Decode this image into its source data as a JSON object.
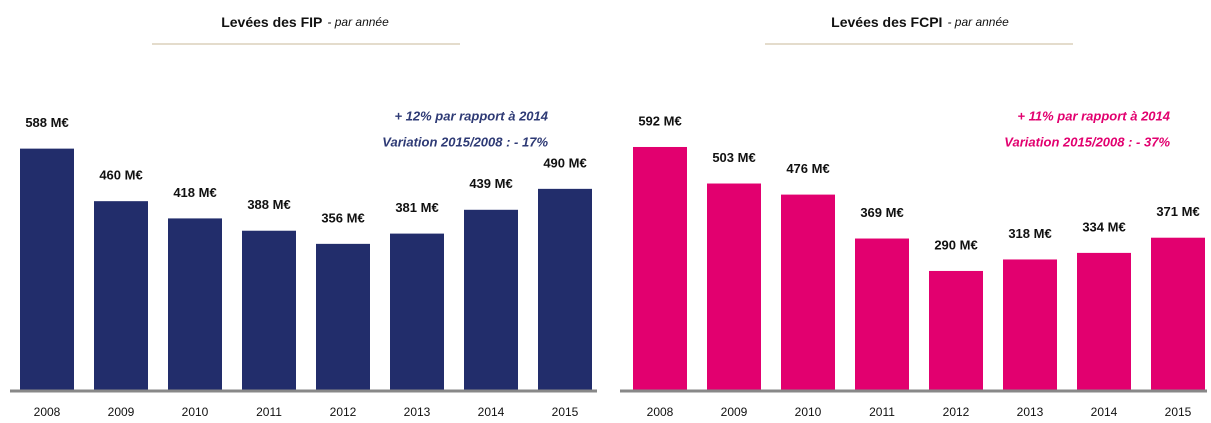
{
  "chart_data": [
    {
      "type": "bar",
      "title": "Levées des FIP",
      "subtitle": "- par année",
      "annotations": [
        "+ 12% par rapport à 2014",
        "Variation 2015/2008 :  - 17%"
      ],
      "categories": [
        "2008",
        "2009",
        "2010",
        "2011",
        "2012",
        "2013",
        "2014",
        "2015"
      ],
      "values": [
        588,
        460,
        418,
        388,
        356,
        381,
        439,
        490
      ],
      "value_labels": [
        "588 M€",
        "460 M€",
        "418 M€",
        "388 M€",
        "356 M€",
        "381 M€",
        "439 M€",
        "490 M€"
      ],
      "color": "#222d6b",
      "annotation_color": "#2e3a75",
      "ylim": [
        0,
        700
      ]
    },
    {
      "type": "bar",
      "title": "Levées des FCPI",
      "subtitle": "- par année",
      "annotations": [
        "+ 11% par rapport à 2014",
        "Variation 2015/2008 : - 37%"
      ],
      "categories": [
        "2008",
        "2009",
        "2010",
        "2011",
        "2012",
        "2013",
        "2014",
        "2015"
      ],
      "values": [
        592,
        503,
        476,
        369,
        290,
        318,
        334,
        371
      ],
      "value_labels": [
        "592 M€",
        "503 M€",
        "476 M€",
        "369 M€",
        "290 M€",
        "318 M€",
        "334 M€",
        "371 M€"
      ],
      "color": "#e2006f",
      "annotation_color": "#e2006f",
      "ylim": [
        0,
        700
      ]
    }
  ]
}
